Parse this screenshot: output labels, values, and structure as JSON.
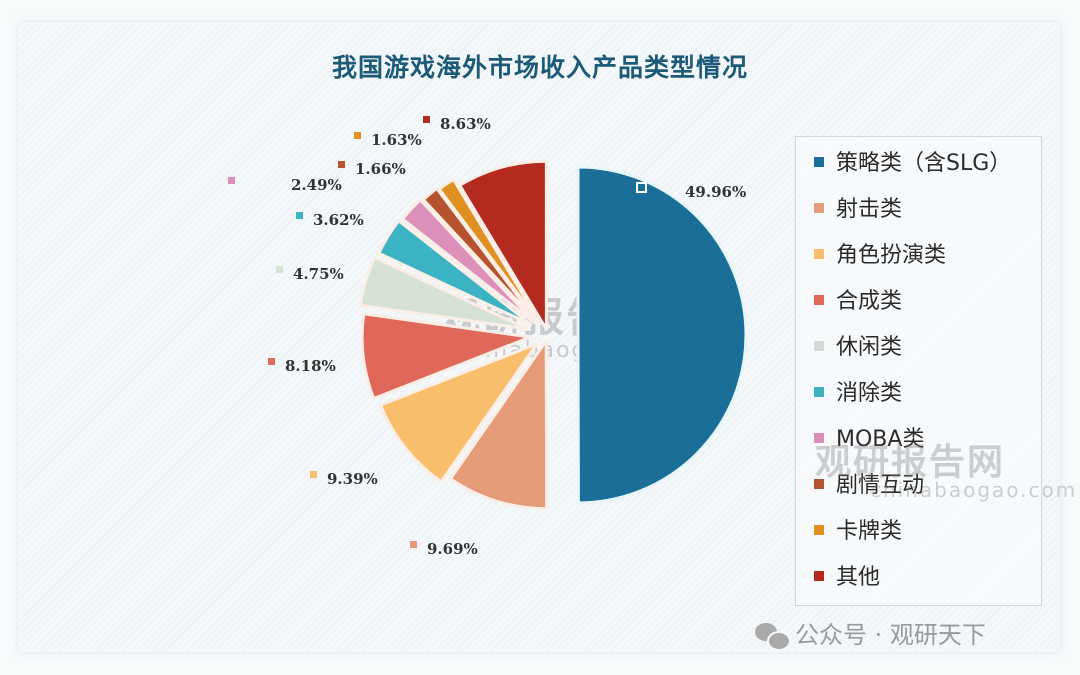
{
  "title": "我国游戏海外市场收入产品类型情况",
  "chart_data": {
    "type": "pie",
    "title": "我国游戏海外市场收入产品类型情况",
    "unit": "%",
    "categories": [
      "策略类（含SLG）",
      "射击类",
      "角色扮演类",
      "合成类",
      "休闲类",
      "消除类",
      "MOBA类",
      "剧情互动",
      "卡牌类",
      "其他"
    ],
    "values": [
      49.96,
      9.69,
      9.39,
      8.18,
      4.75,
      3.62,
      2.49,
      1.66,
      1.63,
      8.63
    ],
    "labels": [
      "49.96%",
      "9.69%",
      "9.39%",
      "8.18%",
      "4.75%",
      "3.62%",
      "2.49%",
      "1.66%",
      "1.63%",
      "8.63%"
    ],
    "colors": [
      "#1a6e97",
      "#e59a78",
      "#f9be6c",
      "#e0685a",
      "#d5e2d3",
      "#3bb3c3",
      "#dc8fb8",
      "#b4532e",
      "#e09020",
      "#b52a1e"
    ],
    "legend_position": "right",
    "exploded": true
  },
  "legend": {
    "items": [
      {
        "label": "策略类（含SLG）",
        "color": "#1a6e97"
      },
      {
        "label": "射击类",
        "color": "#e59a78"
      },
      {
        "label": "角色扮演类",
        "color": "#f9be6c"
      },
      {
        "label": "合成类",
        "color": "#e0685a"
      },
      {
        "label": "休闲类",
        "color": "#d5dad6"
      },
      {
        "label": "消除类",
        "color": "#3bb3c3"
      },
      {
        "label": "MOBA类",
        "color": "#dc8fb8"
      },
      {
        "label": "剧情互动",
        "color": "#b4532e"
      },
      {
        "label": "卡牌类",
        "color": "#e09020"
      },
      {
        "label": "其他",
        "color": "#b52a1e"
      }
    ]
  },
  "watermark": {
    "text": "观研报告网",
    "url": "chinabaogao.com"
  },
  "footer": {
    "text": "公众号 · 观研天下"
  }
}
